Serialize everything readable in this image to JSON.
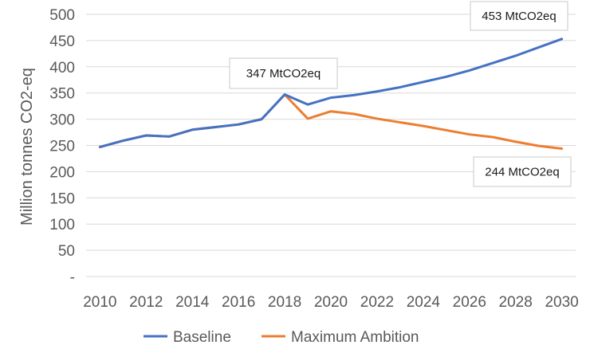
{
  "chart_data": {
    "type": "line",
    "title": "",
    "xlabel": "",
    "ylabel": "Million tonnes CO2-eq",
    "ylim": [
      0,
      500
    ],
    "y_ticks": [
      "-",
      "50",
      "100",
      "150",
      "200",
      "250",
      "300",
      "350",
      "400",
      "450",
      "500"
    ],
    "x_ticks": [
      "2010",
      "2012",
      "2014",
      "2016",
      "2018",
      "2020",
      "2022",
      "2024",
      "2026",
      "2028",
      "2030"
    ],
    "x": [
      2010,
      2011,
      2012,
      2013,
      2014,
      2015,
      2016,
      2017,
      2018,
      2019,
      2020,
      2021,
      2022,
      2023,
      2024,
      2025,
      2026,
      2027,
      2028,
      2029,
      2030
    ],
    "grid": "horizontal",
    "legend": "bottom",
    "series": [
      {
        "name": "Baseline",
        "color": "#4472C4",
        "values": [
          247,
          259,
          269,
          267,
          280,
          285,
          290,
          300,
          347,
          328,
          341,
          346,
          353,
          361,
          371,
          381,
          393,
          407,
          421,
          437,
          453
        ]
      },
      {
        "name": "Maximum Ambition",
        "color": "#ED7D31",
        "values": [
          247,
          259,
          269,
          267,
          280,
          285,
          290,
          300,
          347,
          301,
          315,
          310,
          301,
          294,
          287,
          279,
          271,
          266,
          257,
          249,
          244
        ]
      }
    ],
    "annotations": [
      {
        "text": "453 MtCO2eq",
        "x": 2030,
        "y": 453
      },
      {
        "text": "347 MtCO2eq",
        "x": 2018,
        "y": 347
      },
      {
        "text": "244 MtCO2eq",
        "x": 2030,
        "y": 244
      }
    ]
  }
}
